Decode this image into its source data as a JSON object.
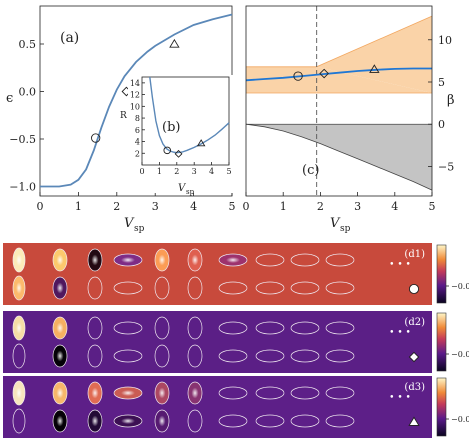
{
  "colors": {
    "curve": "#5b88b8",
    "fig_blue": "#1f77d4",
    "band": "#fad3a8",
    "band_edge": "#f2a760",
    "gray_fill": "#c4c4c4",
    "d1_bg": "#c84a3c",
    "d2_bg": "#5b1f86",
    "d3_bg": "#5d1f88"
  },
  "chart_data": [
    {
      "id": "a",
      "type": "line",
      "panel_label": "(a)",
      "ylabel": "ϵ",
      "xlabel": "V",
      "xlabel_sub": "sp",
      "xlim": [
        0,
        5
      ],
      "ylim": [
        -1.1,
        0.9
      ],
      "xticks": [
        "0",
        "1",
        "2",
        "3",
        "4",
        "5"
      ],
      "yticks": [
        "−1.0",
        "−0.5",
        "0.0",
        "0.5"
      ],
      "x": [
        0,
        0.5,
        0.8,
        1.0,
        1.2,
        1.4,
        1.6,
        1.8,
        2.0,
        2.2,
        2.5,
        2.8,
        3.0,
        3.5,
        4.0,
        4.5,
        5.0
      ],
      "y": [
        -1.0,
        -1.0,
        -0.98,
        -0.93,
        -0.82,
        -0.62,
        -0.38,
        -0.16,
        0.02,
        0.16,
        0.31,
        0.42,
        0.48,
        0.6,
        0.7,
        0.76,
        0.81
      ],
      "markers": [
        {
          "shape": "circle",
          "x": 1.45,
          "y": -0.49
        },
        {
          "shape": "diamond",
          "x": 2.25,
          "y": 0.0
        },
        {
          "shape": "triangle",
          "x": 3.5,
          "y": 0.5
        }
      ]
    },
    {
      "id": "b",
      "type": "line",
      "panel_label": "(b)",
      "ylabel": "R",
      "xlabel": "V",
      "xlabel_sub": "sp",
      "xlim": [
        0,
        5
      ],
      "ylim": [
        0,
        15
      ],
      "xticks": [
        "0",
        "1",
        "2",
        "3",
        "4",
        "5"
      ],
      "yticks": [
        "2",
        "4",
        "6",
        "8",
        "10",
        "12",
        "14"
      ],
      "x": [
        0.45,
        0.6,
        0.8,
        1.0,
        1.2,
        1.4,
        1.6,
        1.8,
        2.0,
        2.3,
        2.6,
        3.0,
        3.4,
        3.8,
        4.2,
        4.6,
        5.0
      ],
      "y": [
        15,
        11.5,
        7.5,
        5.0,
        3.6,
        2.8,
        2.4,
        2.2,
        2.1,
        2.2,
        2.5,
        3.0,
        3.6,
        4.3,
        5.1,
        6.1,
        7.2
      ],
      "markers": [
        {
          "shape": "circle",
          "x": 1.45,
          "y": 2.5
        },
        {
          "shape": "diamond",
          "x": 2.1,
          "y": 1.9
        },
        {
          "shape": "triangle",
          "x": 3.4,
          "y": 3.7
        }
      ]
    },
    {
      "id": "c",
      "type": "area",
      "panel_label": "(c)",
      "ylabel": "β",
      "xlabel": "V",
      "xlabel_sub": "sp",
      "xlim": [
        0,
        5
      ],
      "ylim": [
        -8.5,
        14
      ],
      "xticks": [
        "0",
        "1",
        "2",
        "3",
        "4",
        "5"
      ],
      "yticks": [
        "−5",
        "0",
        "5",
        "10"
      ],
      "dashed_x": 1.9,
      "band": {
        "x": [
          0,
          1.9
        ],
        "lower": [
          3.7,
          3.7
        ],
        "upper": [
          6.8,
          6.8
        ]
      },
      "wedge_upper": {
        "x": [
          1.9,
          5
        ],
        "upper": [
          6.8,
          12.8
        ],
        "lower": [
          6.8,
          3.7
        ]
      },
      "line": {
        "x": [
          0,
          0.5,
          1.0,
          1.5,
          2.0,
          2.5,
          3.0,
          3.5,
          4.0,
          4.5,
          5.0
        ],
        "y": [
          5.2,
          5.35,
          5.5,
          5.7,
          5.9,
          6.1,
          6.3,
          6.45,
          6.55,
          6.6,
          6.6
        ]
      },
      "lower_wedge": {
        "x": [
          0,
          0.5,
          1.0,
          1.5,
          2.0,
          2.5,
          3.0,
          3.5,
          4.0,
          4.5,
          5.0
        ],
        "top": [
          0,
          0,
          0,
          0,
          0,
          0,
          0,
          0,
          0,
          0,
          0
        ],
        "bottom": [
          0,
          -0.3,
          -0.8,
          -1.5,
          -2.3,
          -3.2,
          -4.1,
          -5.0,
          -5.9,
          -6.8,
          -7.8
        ]
      },
      "markers": [
        {
          "shape": "circle",
          "x": 1.4,
          "y": 5.7
        },
        {
          "shape": "diamond",
          "x": 2.1,
          "y": 6.0
        },
        {
          "shape": "triangle",
          "x": 3.45,
          "y": 6.5
        }
      ]
    },
    {
      "id": "d",
      "type": "heatmap",
      "colorbar_label": "−0.0",
      "ellipsis": "• • •",
      "rows": [
        {
          "label": "(d1)",
          "marker": "circle",
          "top": [
            "#fff3c0",
            "#ffd070",
            "#1a0510",
            "#7a2a8a",
            "#ffa055",
            "#e06050",
            "#9b3070",
            "",
            "",
            ""
          ],
          "bottom": [
            "#ffc070",
            "#4a1560",
            "",
            "",
            "",
            "",
            "",
            "",
            "",
            ""
          ]
        },
        {
          "label": "(d2)",
          "marker": "diamond",
          "top": [
            "#ffe9a8",
            "#ffb860",
            "",
            "",
            "",
            "",
            "",
            "",
            "",
            ""
          ],
          "bottom": [
            "",
            "#000000",
            "",
            "",
            "",
            "",
            "",
            "",
            "",
            ""
          ]
        },
        {
          "label": "(d3)",
          "marker": "triangle",
          "top": [
            "#fff0c0",
            "#ffc068",
            "#e77050",
            "#d06050",
            "#b04a60",
            "#8a3570",
            "",
            "",
            "",
            ""
          ],
          "bottom": [
            "",
            "#000000",
            "#200a30",
            "#3a1050",
            "#551a70",
            "",
            "",
            "",
            "",
            ""
          ]
        }
      ]
    }
  ]
}
